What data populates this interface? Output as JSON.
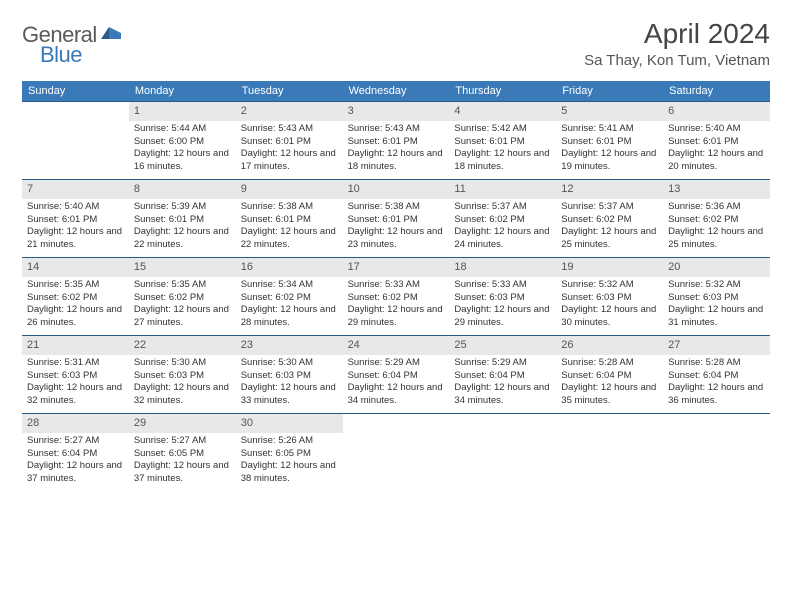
{
  "logo": {
    "text1": "General",
    "text2": "Blue"
  },
  "title": "April 2024",
  "location": "Sa Thay, Kon Tum, Vietnam",
  "colors": {
    "header_bg": "#3a7ab8",
    "header_text": "#ffffff",
    "day_number_bg": "#e8e8e8",
    "border": "#2a5c8a",
    "logo_gray": "#5a5a5a",
    "logo_blue": "#3a7ab8"
  },
  "weekdays": [
    "Sunday",
    "Monday",
    "Tuesday",
    "Wednesday",
    "Thursday",
    "Friday",
    "Saturday"
  ],
  "weeks": [
    [
      null,
      {
        "n": "1",
        "sr": "5:44 AM",
        "ss": "6:00 PM",
        "dl": "12 hours and 16 minutes."
      },
      {
        "n": "2",
        "sr": "5:43 AM",
        "ss": "6:01 PM",
        "dl": "12 hours and 17 minutes."
      },
      {
        "n": "3",
        "sr": "5:43 AM",
        "ss": "6:01 PM",
        "dl": "12 hours and 18 minutes."
      },
      {
        "n": "4",
        "sr": "5:42 AM",
        "ss": "6:01 PM",
        "dl": "12 hours and 18 minutes."
      },
      {
        "n": "5",
        "sr": "5:41 AM",
        "ss": "6:01 PM",
        "dl": "12 hours and 19 minutes."
      },
      {
        "n": "6",
        "sr": "5:40 AM",
        "ss": "6:01 PM",
        "dl": "12 hours and 20 minutes."
      }
    ],
    [
      {
        "n": "7",
        "sr": "5:40 AM",
        "ss": "6:01 PM",
        "dl": "12 hours and 21 minutes."
      },
      {
        "n": "8",
        "sr": "5:39 AM",
        "ss": "6:01 PM",
        "dl": "12 hours and 22 minutes."
      },
      {
        "n": "9",
        "sr": "5:38 AM",
        "ss": "6:01 PM",
        "dl": "12 hours and 22 minutes."
      },
      {
        "n": "10",
        "sr": "5:38 AM",
        "ss": "6:01 PM",
        "dl": "12 hours and 23 minutes."
      },
      {
        "n": "11",
        "sr": "5:37 AM",
        "ss": "6:02 PM",
        "dl": "12 hours and 24 minutes."
      },
      {
        "n": "12",
        "sr": "5:37 AM",
        "ss": "6:02 PM",
        "dl": "12 hours and 25 minutes."
      },
      {
        "n": "13",
        "sr": "5:36 AM",
        "ss": "6:02 PM",
        "dl": "12 hours and 25 minutes."
      }
    ],
    [
      {
        "n": "14",
        "sr": "5:35 AM",
        "ss": "6:02 PM",
        "dl": "12 hours and 26 minutes."
      },
      {
        "n": "15",
        "sr": "5:35 AM",
        "ss": "6:02 PM",
        "dl": "12 hours and 27 minutes."
      },
      {
        "n": "16",
        "sr": "5:34 AM",
        "ss": "6:02 PM",
        "dl": "12 hours and 28 minutes."
      },
      {
        "n": "17",
        "sr": "5:33 AM",
        "ss": "6:02 PM",
        "dl": "12 hours and 29 minutes."
      },
      {
        "n": "18",
        "sr": "5:33 AM",
        "ss": "6:03 PM",
        "dl": "12 hours and 29 minutes."
      },
      {
        "n": "19",
        "sr": "5:32 AM",
        "ss": "6:03 PM",
        "dl": "12 hours and 30 minutes."
      },
      {
        "n": "20",
        "sr": "5:32 AM",
        "ss": "6:03 PM",
        "dl": "12 hours and 31 minutes."
      }
    ],
    [
      {
        "n": "21",
        "sr": "5:31 AM",
        "ss": "6:03 PM",
        "dl": "12 hours and 32 minutes."
      },
      {
        "n": "22",
        "sr": "5:30 AM",
        "ss": "6:03 PM",
        "dl": "12 hours and 32 minutes."
      },
      {
        "n": "23",
        "sr": "5:30 AM",
        "ss": "6:03 PM",
        "dl": "12 hours and 33 minutes."
      },
      {
        "n": "24",
        "sr": "5:29 AM",
        "ss": "6:04 PM",
        "dl": "12 hours and 34 minutes."
      },
      {
        "n": "25",
        "sr": "5:29 AM",
        "ss": "6:04 PM",
        "dl": "12 hours and 34 minutes."
      },
      {
        "n": "26",
        "sr": "5:28 AM",
        "ss": "6:04 PM",
        "dl": "12 hours and 35 minutes."
      },
      {
        "n": "27",
        "sr": "5:28 AM",
        "ss": "6:04 PM",
        "dl": "12 hours and 36 minutes."
      }
    ],
    [
      {
        "n": "28",
        "sr": "5:27 AM",
        "ss": "6:04 PM",
        "dl": "12 hours and 37 minutes."
      },
      {
        "n": "29",
        "sr": "5:27 AM",
        "ss": "6:05 PM",
        "dl": "12 hours and 37 minutes."
      },
      {
        "n": "30",
        "sr": "5:26 AM",
        "ss": "6:05 PM",
        "dl": "12 hours and 38 minutes."
      },
      null,
      null,
      null,
      null
    ]
  ],
  "labels": {
    "sunrise": "Sunrise:",
    "sunset": "Sunset:",
    "daylight": "Daylight:"
  }
}
